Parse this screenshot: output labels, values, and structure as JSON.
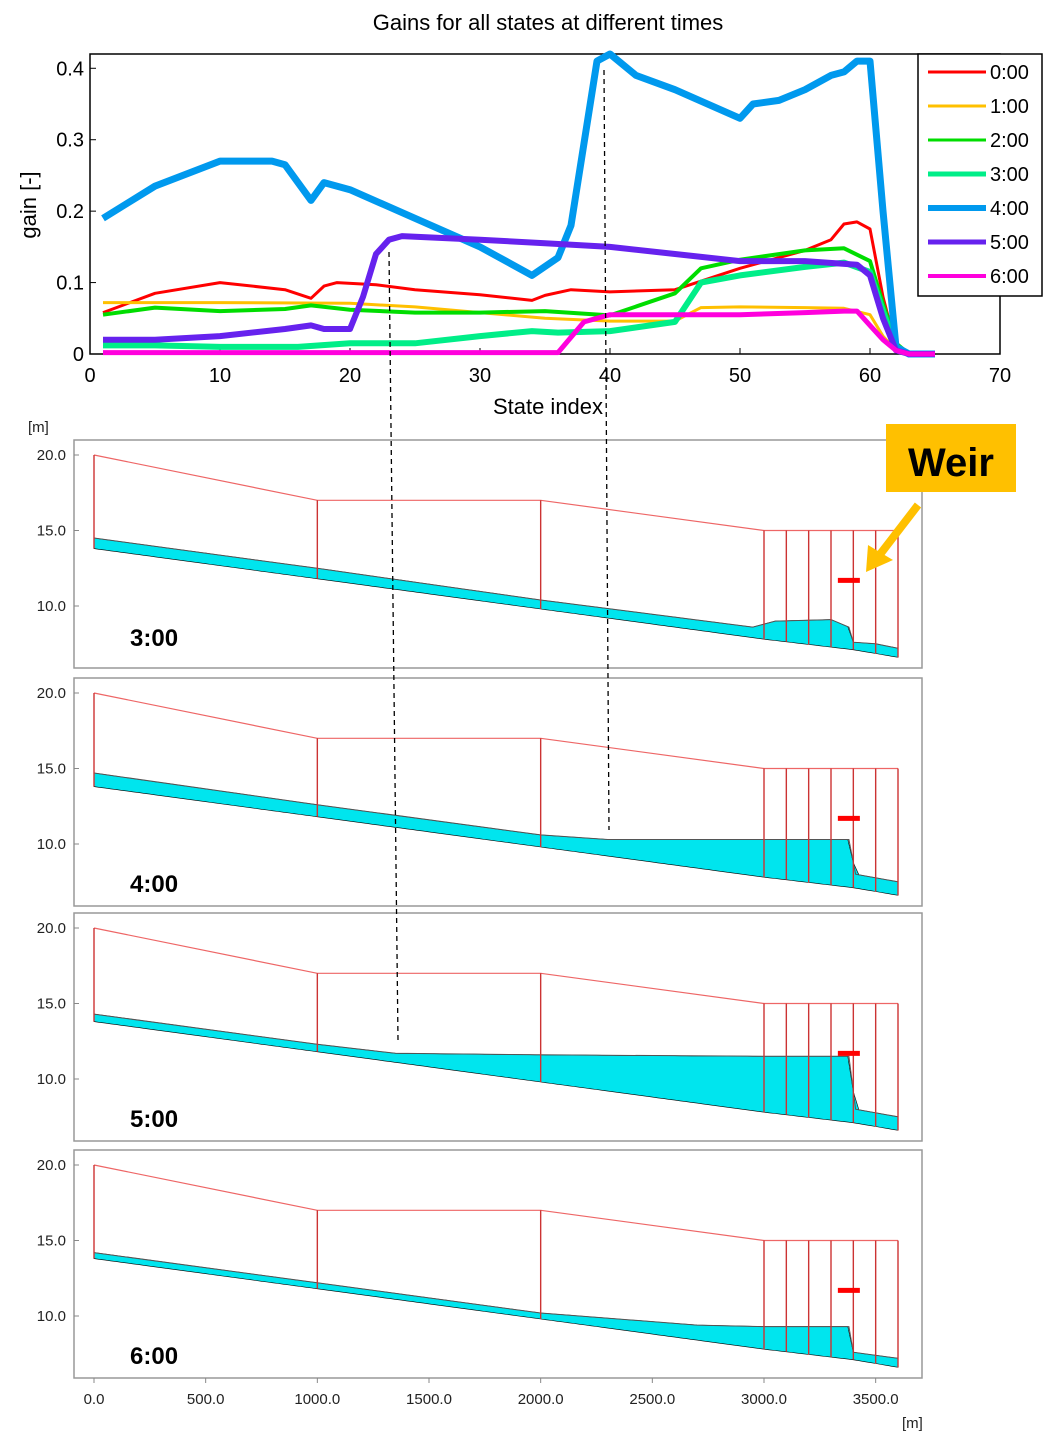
{
  "chart_data": [
    {
      "type": "line",
      "title": "Gains for all states at different times",
      "xlabel": "State index",
      "ylabel": "gain [-]",
      "xlim": [
        0,
        70
      ],
      "ylim": [
        0,
        0.42
      ],
      "xticks": [
        "0",
        "10",
        "20",
        "30",
        "40",
        "50",
        "60",
        "70"
      ],
      "yticks": [
        "0",
        "0.1",
        "0.2",
        "0.3",
        "0.4"
      ],
      "grid": false,
      "legend": "top-right",
      "series": [
        {
          "name": "0:00",
          "color": "#ff0000",
          "x": [
            1,
            5,
            10,
            15,
            17,
            18,
            19,
            22,
            25,
            30,
            34,
            35,
            37,
            40,
            45,
            50,
            53,
            55,
            57,
            58,
            59,
            60,
            61,
            62,
            63,
            65
          ],
          "y": [
            0.058,
            0.085,
            0.1,
            0.09,
            0.078,
            0.095,
            0.1,
            0.097,
            0.09,
            0.083,
            0.075,
            0.082,
            0.09,
            0.087,
            0.09,
            0.12,
            0.135,
            0.145,
            0.16,
            0.182,
            0.185,
            0.175,
            0.08,
            0.01,
            0.002,
            0.0
          ]
        },
        {
          "name": "1:00",
          "color": "#ffc000",
          "x": [
            1,
            10,
            20,
            25,
            30,
            35,
            40,
            45,
            47,
            50,
            55,
            58,
            60,
            61,
            62,
            63,
            65
          ],
          "y": [
            0.072,
            0.072,
            0.071,
            0.066,
            0.058,
            0.05,
            0.046,
            0.046,
            0.065,
            0.066,
            0.065,
            0.064,
            0.055,
            0.025,
            0.005,
            0.0,
            0.0
          ]
        },
        {
          "name": "2:00",
          "color": "#00dd00",
          "x": [
            1,
            5,
            10,
            15,
            17,
            20,
            25,
            30,
            35,
            40,
            45,
            47,
            50,
            55,
            58,
            60,
            61,
            62,
            63,
            65
          ],
          "y": [
            0.055,
            0.065,
            0.06,
            0.063,
            0.068,
            0.062,
            0.058,
            0.058,
            0.06,
            0.054,
            0.085,
            0.12,
            0.132,
            0.145,
            0.148,
            0.13,
            0.07,
            0.015,
            0.0,
            0.0
          ]
        },
        {
          "name": "3:00",
          "color": "#00ee88",
          "x": [
            1,
            5,
            10,
            16,
            20,
            25,
            30,
            34,
            36,
            40,
            45,
            47,
            50,
            55,
            58,
            60,
            61,
            62,
            63,
            65
          ],
          "y": [
            0.012,
            0.012,
            0.01,
            0.01,
            0.015,
            0.015,
            0.025,
            0.032,
            0.03,
            0.032,
            0.045,
            0.1,
            0.11,
            0.122,
            0.128,
            0.115,
            0.06,
            0.01,
            0.0,
            0.0
          ]
        },
        {
          "name": "4:00",
          "color": "#0099ee",
          "x": [
            1,
            5,
            10,
            14,
            15,
            17,
            18,
            20,
            25,
            30,
            34,
            36,
            37,
            39,
            40,
            42,
            45,
            50,
            51,
            53,
            55,
            57,
            58,
            59,
            60,
            61,
            62,
            63,
            65
          ],
          "y": [
            0.19,
            0.235,
            0.27,
            0.27,
            0.265,
            0.215,
            0.24,
            0.23,
            0.19,
            0.15,
            0.11,
            0.135,
            0.18,
            0.41,
            0.42,
            0.39,
            0.37,
            0.33,
            0.35,
            0.355,
            0.37,
            0.39,
            0.395,
            0.41,
            0.41,
            0.2,
            0.01,
            0.0,
            0.0
          ]
        },
        {
          "name": "5:00",
          "color": "#6622ee",
          "x": [
            1,
            5,
            10,
            15,
            17,
            18,
            20,
            21,
            22,
            23,
            24,
            30,
            35,
            40,
            45,
            50,
            55,
            59,
            60,
            61,
            62,
            63,
            65
          ],
          "y": [
            0.02,
            0.02,
            0.025,
            0.035,
            0.04,
            0.035,
            0.035,
            0.08,
            0.14,
            0.16,
            0.165,
            0.16,
            0.155,
            0.15,
            0.14,
            0.13,
            0.13,
            0.125,
            0.11,
            0.05,
            0.005,
            0.0,
            0.0
          ]
        },
        {
          "name": "6:00",
          "color": "#ff00dd",
          "x": [
            1,
            10,
            20,
            30,
            36,
            38,
            40,
            50,
            55,
            58,
            59,
            60,
            61,
            62,
            63,
            65
          ],
          "y": [
            0.002,
            0.002,
            0.002,
            0.002,
            0.002,
            0.045,
            0.055,
            0.055,
            0.058,
            0.06,
            0.06,
            0.04,
            0.02,
            0.005,
            0.0,
            0.0
          ]
        }
      ]
    },
    {
      "type": "area",
      "ylabel_unit": "[m]",
      "xlabel_unit": "[m]",
      "xlim": [
        0,
        3600
      ],
      "ylim": [
        7,
        20
      ],
      "xticks": [
        "0.0",
        "500.0",
        "1000.0",
        "1500.0",
        "2000.0",
        "2500.0",
        "3000.0",
        "3500.0"
      ],
      "yticks": [
        "20.0",
        "15.0",
        "10.0"
      ],
      "annotation": "Weir",
      "colors": {
        "bed": "#00e5ee",
        "crest": "#ee6666",
        "divider": "#cc3333",
        "water_line": "#555555",
        "weir": "#ff0000",
        "weir_box": "#ffc000"
      },
      "profile": {
        "x": [
          0,
          1000,
          2000,
          3000,
          3400,
          3600
        ],
        "bed": [
          14.0,
          12.0,
          10.0,
          8.0,
          7.3,
          6.8
        ],
        "crest": [
          20,
          17,
          17,
          15,
          15,
          15
        ],
        "dividers": [
          0,
          1000,
          2000,
          3000,
          3100,
          3200,
          3300,
          3400,
          3500,
          3600
        ],
        "weir": {
          "x": 3380,
          "y": 11.7
        }
      },
      "panels": [
        {
          "time": "3:00",
          "water": [
            [
              0,
              14.5
            ],
            [
              1000,
              12.5
            ],
            [
              2000,
              10.4
            ],
            [
              2950,
              8.6
            ],
            [
              3050,
              9.0
            ],
            [
              3300,
              9.1
            ],
            [
              3380,
              8.6
            ],
            [
              3400,
              7.6
            ],
            [
              3500,
              7.5
            ],
            [
              3600,
              7.2
            ]
          ]
        },
        {
          "time": "4:00",
          "water": [
            [
              0,
              14.7
            ],
            [
              1000,
              12.6
            ],
            [
              2000,
              10.6
            ],
            [
              2300,
              10.3
            ],
            [
              3000,
              10.3
            ],
            [
              3380,
              10.3
            ],
            [
              3410,
              8.0
            ],
            [
              3600,
              7.5
            ]
          ]
        },
        {
          "time": "5:00",
          "water": [
            [
              0,
              14.3
            ],
            [
              1000,
              12.3
            ],
            [
              1350,
              11.7
            ],
            [
              2000,
              11.6
            ],
            [
              3000,
              11.5
            ],
            [
              3380,
              11.5
            ],
            [
              3410,
              8.0
            ],
            [
              3600,
              7.5
            ]
          ]
        },
        {
          "time": "6:00",
          "water": [
            [
              0,
              14.2
            ],
            [
              1000,
              12.2
            ],
            [
              2000,
              10.2
            ],
            [
              2700,
              9.4
            ],
            [
              3000,
              9.3
            ],
            [
              3380,
              9.3
            ],
            [
              3400,
              7.6
            ],
            [
              3600,
              7.2
            ]
          ]
        }
      ]
    }
  ]
}
